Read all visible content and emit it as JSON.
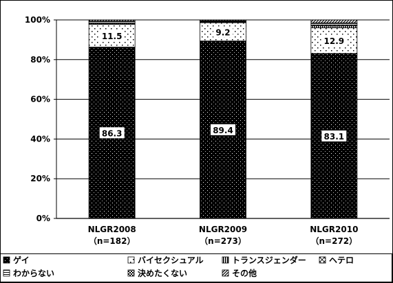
{
  "chart_data": {
    "type": "bar",
    "stacked": true,
    "categories": [
      {
        "name": "NLGR2008",
        "n": "（n=182）"
      },
      {
        "name": "NLGR2009",
        "n": "（n=273）"
      },
      {
        "name": "NLGR2010",
        "n": "（n=272）"
      }
    ],
    "ylim": [
      0,
      100
    ],
    "yticks": [
      "0%",
      "20%",
      "40%",
      "60%",
      "80%",
      "100%"
    ],
    "grid": true,
    "legend_position": "bottom",
    "series": [
      {
        "name": "ゲイ",
        "pattern": "dense-dots",
        "values": [
          86.3,
          89.4,
          83.1
        ],
        "labels": [
          "86.3",
          "89.4",
          "83.1"
        ]
      },
      {
        "name": "バイセクシュアル",
        "pattern": "sparse-dots",
        "values": [
          11.5,
          9.2,
          12.9
        ],
        "labels": [
          "11.5",
          "9.2",
          "12.9"
        ]
      },
      {
        "name": "トランスジェンダー",
        "pattern": "vertical-lines",
        "values": [
          0.4,
          0.3,
          1.1
        ]
      },
      {
        "name": "ヘテロ",
        "pattern": "crosshatch",
        "values": [
          0.3,
          0.2,
          0.4
        ]
      },
      {
        "name": "わからない",
        "pattern": "horizontal-lines",
        "values": [
          0.6,
          0.3,
          0.7
        ]
      },
      {
        "name": "決めたくない",
        "pattern": "checker",
        "values": [
          0.3,
          0.2,
          0.3
        ]
      },
      {
        "name": "その他",
        "pattern": "diagonal",
        "values": [
          0.6,
          0.4,
          1.5
        ]
      }
    ]
  }
}
